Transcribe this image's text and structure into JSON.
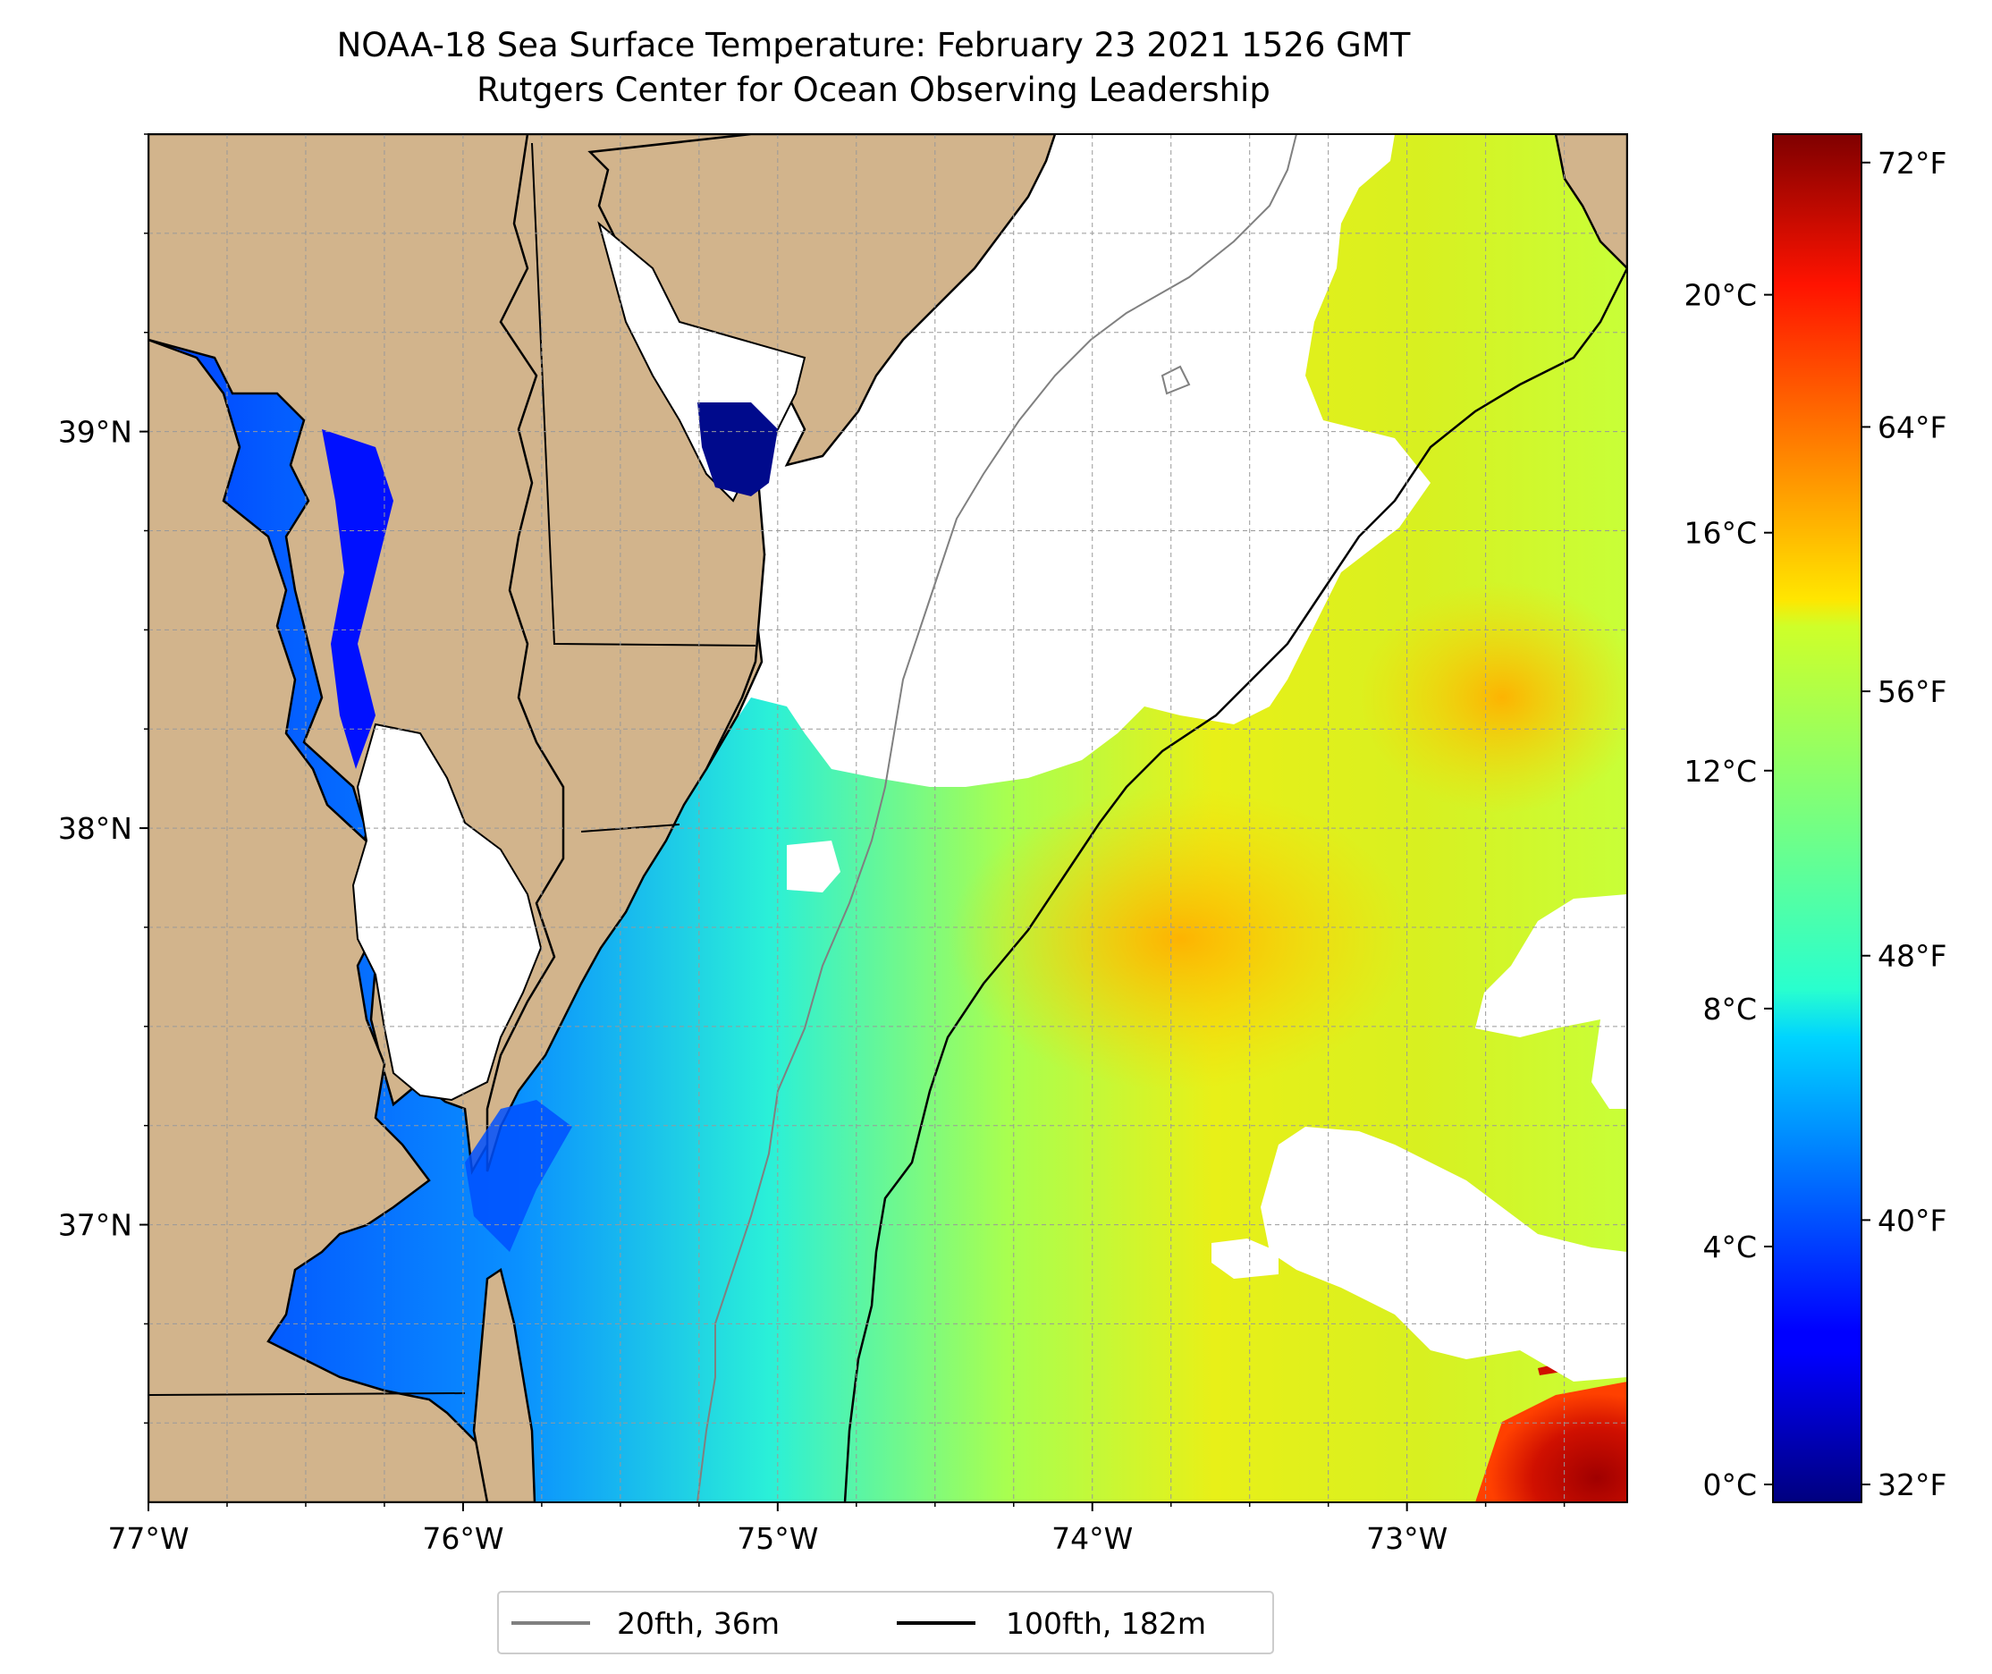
{
  "title_line1": "NOAA-18 Sea Surface Temperature: February 23 2021 1526 GMT",
  "title_line2": "Rutgers Center for Ocean Observing Leadership",
  "map": {
    "lon_range": [
      -77.0,
      -72.3
    ],
    "lat_range": [
      36.3,
      39.75
    ],
    "lon_ticks": [
      -77,
      -76,
      -75,
      -74,
      -73
    ],
    "lon_tick_labels": [
      "77°W",
      "76°W",
      "75°W",
      "74°W",
      "73°W"
    ],
    "lat_ticks": [
      37,
      38,
      39
    ],
    "lat_tick_labels": [
      "37°N",
      "38°N",
      "39°N"
    ],
    "minor_lon_step": 0.25,
    "minor_lat_step": 0.25,
    "gridlines": true,
    "land_color": "#D2B48C",
    "cloud_mask_color": "#FFFFFF",
    "colormap": "jet"
  },
  "colorbar": {
    "celsius_range": [
      -0.3,
      22.7
    ],
    "celsius_ticks": [
      0,
      4,
      8,
      12,
      16,
      20
    ],
    "celsius_labels": [
      "0°C",
      "4°C",
      "8°C",
      "12°C",
      "16°C",
      "20°C"
    ],
    "fahrenheit_ticks": [
      32,
      40,
      48,
      56,
      64,
      72
    ],
    "fahrenheit_labels": [
      "32°F",
      "40°F",
      "48°F",
      "56°F",
      "64°F",
      "72°F"
    ]
  },
  "legend": {
    "placement": "bottom-center",
    "items": [
      {
        "label": "20fth, 36m",
        "color": "#808080"
      },
      {
        "label": "100fth, 182m",
        "color": "#000000"
      }
    ]
  }
}
